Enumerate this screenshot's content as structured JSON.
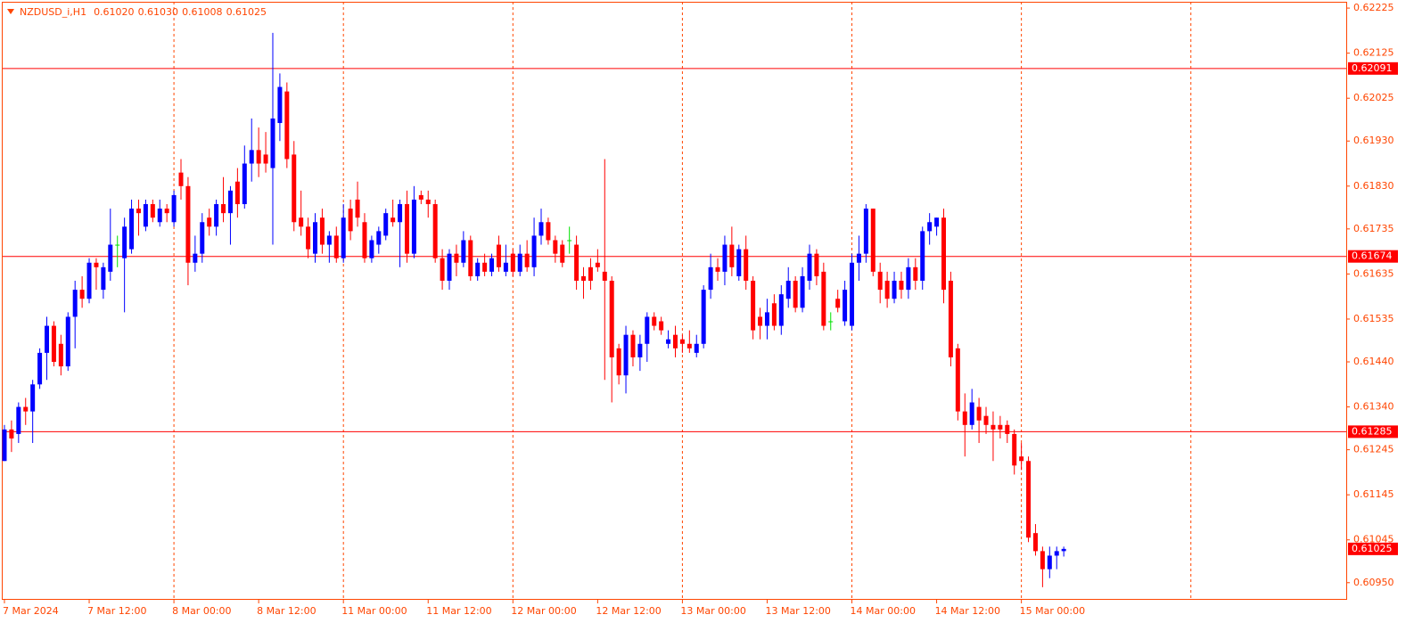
{
  "chart_data": {
    "type": "candlestick",
    "title": "NZDUSD_i,H1",
    "last_labels": [
      "0.61020",
      "0.61030",
      "0.61008",
      "0.61025"
    ],
    "bull_color": "#0000ff",
    "bear_color": "#ff0000",
    "doji_color": "#00e000",
    "grid_color": "#ff4500",
    "level_color": "#ff0000",
    "x": [
      0,
      1,
      2,
      3,
      4,
      5,
      6,
      7,
      8,
      9,
      10,
      11,
      12,
      13,
      14,
      15,
      16,
      17,
      18,
      19,
      20,
      21,
      22,
      23,
      24,
      25,
      26,
      27,
      28,
      29,
      30,
      31,
      32,
      33,
      34,
      35,
      36,
      37,
      38,
      39,
      40,
      41,
      42,
      43,
      44,
      45,
      46,
      47,
      48,
      49,
      50,
      51,
      52,
      53,
      54,
      55,
      56,
      57,
      58,
      59,
      60,
      61,
      62,
      63,
      64,
      65,
      66,
      67,
      68,
      69,
      70,
      71,
      72,
      73,
      74,
      75,
      76,
      77,
      78,
      79,
      80,
      81,
      82,
      83,
      84,
      85,
      86,
      87,
      88,
      89,
      90,
      91,
      92,
      93,
      94,
      95,
      96,
      97,
      98,
      99,
      100,
      101,
      102,
      103,
      104,
      105,
      106,
      107,
      108,
      109,
      110,
      111,
      112,
      113,
      114,
      115,
      116,
      117,
      118,
      119,
      120,
      121,
      122,
      123,
      124,
      125,
      126,
      127,
      128,
      129,
      130,
      131,
      132,
      133,
      134,
      135,
      136,
      137,
      138,
      139,
      140,
      141,
      142,
      143,
      144,
      145,
      146,
      147,
      148,
      149,
      150
    ],
    "open": [
      0.6122,
      0.6129,
      0.6128,
      0.6134,
      0.6133,
      0.6139,
      0.6146,
      0.6152,
      0.6148,
      0.6143,
      0.6154,
      0.616,
      0.6158,
      0.6166,
      0.616,
      0.6164,
      0.617,
      0.6167,
      0.6169,
      0.6178,
      0.6174,
      0.6179,
      0.6175,
      0.6178,
      0.6175,
      0.6186,
      0.6183,
      0.6166,
      0.6168,
      0.6176,
      0.6174,
      0.6179,
      0.6177,
      0.6184,
      0.6179,
      0.6188,
      0.6191,
      0.619,
      0.6187,
      0.6197,
      0.6204,
      0.619,
      0.6176,
      0.6174,
      0.6168,
      0.6176,
      0.617,
      0.6172,
      0.6167,
      0.6178,
      0.618,
      0.6175,
      0.6167,
      0.617,
      0.6172,
      0.6176,
      0.6175,
      0.6179,
      0.6168,
      0.6181,
      0.618,
      0.6179,
      0.6167,
      0.6162,
      0.6168,
      0.6166,
      0.6171,
      0.6163,
      0.6166,
      0.6164,
      0.617,
      0.6164,
      0.6168,
      0.6164,
      0.6168,
      0.6165,
      0.6172,
      0.6175,
      0.6171,
      0.617,
      0.6171,
      0.617,
      0.6163,
      0.6165,
      0.6166,
      0.6164,
      0.6162,
      0.6147,
      0.6141,
      0.615,
      0.6145,
      0.6148,
      0.6154,
      0.6153,
      0.6148,
      0.615,
      0.6149,
      0.6148,
      0.6146,
      0.6148,
      0.616,
      0.6165,
      0.6164,
      0.617,
      0.6163,
      0.6169,
      0.6162,
      0.6154,
      0.6152,
      0.6157,
      0.6152,
      0.6158,
      0.6162,
      0.6156,
      0.6162,
      0.6168,
      0.6164,
      0.6153,
      0.6158,
      0.6153,
      0.6152,
      0.6166,
      0.6168,
      0.6178,
      0.6164,
      0.6162,
      0.6158,
      0.6162,
      0.616,
      0.6165,
      0.6162,
      0.6173,
      0.6174,
      0.6176,
      0.6162,
      0.6147,
      0.6133,
      0.613,
      0.6134,
      0.6132,
      0.613,
      0.613,
      0.613,
      0.6128,
      0.6123,
      0.6122,
      0.6106,
      0.6102,
      0.6098,
      0.6101,
      0.6102
    ],
    "high": [
      0.613,
      0.6131,
      0.6135,
      0.6136,
      0.614,
      0.6147,
      0.6154,
      0.6153,
      0.615,
      0.6155,
      0.6162,
      0.6163,
      0.6167,
      0.6167,
      0.6166,
      0.6178,
      0.6172,
      0.6176,
      0.618,
      0.618,
      0.618,
      0.618,
      0.618,
      0.6179,
      0.6182,
      0.6189,
      0.6185,
      0.6172,
      0.6177,
      0.6178,
      0.618,
      0.6185,
      0.6183,
      0.6187,
      0.6192,
      0.6198,
      0.6196,
      0.6195,
      0.6217,
      0.6208,
      0.6206,
      0.6193,
      0.6182,
      0.6176,
      0.6177,
      0.6178,
      0.6173,
      0.6174,
      0.6179,
      0.618,
      0.6184,
      0.6177,
      0.6172,
      0.6174,
      0.6178,
      0.618,
      0.618,
      0.6182,
      0.6183,
      0.6182,
      0.6182,
      0.618,
      0.6169,
      0.6169,
      0.617,
      0.6173,
      0.6172,
      0.6167,
      0.6168,
      0.6168,
      0.6172,
      0.617,
      0.6169,
      0.617,
      0.6171,
      0.6176,
      0.6178,
      0.6176,
      0.6172,
      0.6171,
      0.6174,
      0.6172,
      0.6165,
      0.6167,
      0.6169,
      0.6189,
      0.6163,
      0.6148,
      0.6152,
      0.6151,
      0.615,
      0.6155,
      0.6155,
      0.6154,
      0.6151,
      0.6152,
      0.615,
      0.6151,
      0.615,
      0.6161,
      0.6168,
      0.6167,
      0.6172,
      0.6174,
      0.617,
      0.6172,
      0.6163,
      0.6156,
      0.6158,
      0.6159,
      0.6161,
      0.6165,
      0.6163,
      0.6165,
      0.617,
      0.6169,
      0.6166,
      0.6155,
      0.616,
      0.6162,
      0.6168,
      0.6172,
      0.6179,
      0.6178,
      0.6166,
      0.6164,
      0.6164,
      0.6164,
      0.6167,
      0.6167,
      0.6174,
      0.6177,
      0.6176,
      0.6178,
      0.6164,
      0.6148,
      0.6137,
      0.6138,
      0.6136,
      0.6134,
      0.6133,
      0.6132,
      0.6131,
      0.6129,
      0.6126,
      0.6123,
      0.6108,
      0.6103,
      0.6103,
      0.6103,
      0.6103
    ],
    "low": [
      0.6122,
      0.6124,
      0.6126,
      0.613,
      0.6126,
      0.6138,
      0.614,
      0.6143,
      0.6141,
      0.6142,
      0.6147,
      0.6156,
      0.6157,
      0.616,
      0.6158,
      0.6162,
      0.6165,
      0.6155,
      0.6168,
      0.6172,
      0.6173,
      0.6175,
      0.6174,
      0.6175,
      0.6174,
      0.618,
      0.6161,
      0.6164,
      0.6166,
      0.6172,
      0.6172,
      0.6175,
      0.617,
      0.6176,
      0.6178,
      0.6184,
      0.6185,
      0.6186,
      0.617,
      0.6193,
      0.6187,
      0.6173,
      0.6172,
      0.6167,
      0.6166,
      0.6168,
      0.6166,
      0.6166,
      0.6166,
      0.6171,
      0.6174,
      0.6166,
      0.6166,
      0.6168,
      0.6171,
      0.6174,
      0.6165,
      0.6166,
      0.6167,
      0.6179,
      0.6176,
      0.6166,
      0.616,
      0.616,
      0.6163,
      0.6165,
      0.6162,
      0.6162,
      0.6163,
      0.6163,
      0.6164,
      0.6163,
      0.6163,
      0.6163,
      0.6164,
      0.6163,
      0.617,
      0.617,
      0.6166,
      0.6165,
      0.6168,
      0.616,
      0.6158,
      0.616,
      0.6164,
      0.614,
      0.6135,
      0.6139,
      0.6137,
      0.6143,
      0.6142,
      0.6144,
      0.6151,
      0.615,
      0.6147,
      0.6145,
      0.6146,
      0.6146,
      0.6145,
      0.6147,
      0.6158,
      0.6162,
      0.6161,
      0.6163,
      0.6162,
      0.616,
      0.6149,
      0.6149,
      0.6149,
      0.6151,
      0.615,
      0.6156,
      0.6155,
      0.6155,
      0.616,
      0.6161,
      0.6151,
      0.6151,
      0.6155,
      0.6152,
      0.6151,
      0.6162,
      0.6166,
      0.6163,
      0.6157,
      0.6156,
      0.6157,
      0.6158,
      0.6158,
      0.616,
      0.616,
      0.617,
      0.6172,
      0.6157,
      0.6143,
      0.6131,
      0.6123,
      0.6129,
      0.6126,
      0.6128,
      0.6122,
      0.6127,
      0.6126,
      0.6119,
      0.612,
      0.6104,
      0.6101,
      0.6094,
      0.6096,
      0.6098,
      0.61008
    ],
    "close": [
      0.6129,
      0.6127,
      0.6134,
      0.6133,
      0.6139,
      0.6146,
      0.6152,
      0.6144,
      0.6143,
      0.6154,
      0.616,
      0.6158,
      0.6166,
      0.6165,
      0.6165,
      0.617,
      0.617,
      0.6174,
      0.6178,
      0.6177,
      0.6179,
      0.6176,
      0.6178,
      0.6177,
      0.6181,
      0.6183,
      0.6166,
      0.6168,
      0.6175,
      0.6174,
      0.6179,
      0.6177,
      0.6182,
      0.6179,
      0.6188,
      0.6191,
      0.6188,
      0.6188,
      0.6198,
      0.6205,
      0.6189,
      0.6175,
      0.6174,
      0.6169,
      0.6175,
      0.617,
      0.6172,
      0.6167,
      0.6176,
      0.6173,
      0.6176,
      0.6167,
      0.6171,
      0.6173,
      0.6177,
      0.6175,
      0.6179,
      0.6168,
      0.618,
      0.618,
      0.6179,
      0.6167,
      0.6162,
      0.6168,
      0.6166,
      0.6171,
      0.6163,
      0.6166,
      0.6164,
      0.6167,
      0.6165,
      0.6166,
      0.6164,
      0.6168,
      0.6165,
      0.6172,
      0.6175,
      0.6171,
      0.6168,
      0.6166,
      0.6171,
      0.6162,
      0.6162,
      0.6162,
      0.6165,
      0.6162,
      0.6145,
      0.6141,
      0.615,
      0.6145,
      0.6148,
      0.6154,
      0.6152,
      0.6151,
      0.6149,
      0.6147,
      0.6148,
      0.6147,
      0.6148,
      0.616,
      0.6165,
      0.6164,
      0.617,
      0.6165,
      0.6169,
      0.6162,
      0.6151,
      0.6152,
      0.6155,
      0.6152,
      0.6159,
      0.6162,
      0.6156,
      0.6163,
      0.6168,
      0.6163,
      0.6152,
      0.6153,
      0.6156,
      0.616,
      0.6166,
      0.6168,
      0.6178,
      0.6164,
      0.616,
      0.6158,
      0.6162,
      0.616,
      0.6165,
      0.6162,
      0.6173,
      0.6175,
      0.6176,
      0.616,
      0.6145,
      0.6133,
      0.613,
      0.6135,
      0.6131,
      0.613,
      0.6129,
      0.6129,
      0.6128,
      0.6121,
      0.6122,
      0.6105,
      0.6102,
      0.6098,
      0.6101,
      0.6102,
      0.61025
    ],
    "xlim": [
      -0.25,
      190
    ],
    "xticks": [
      {
        "value": 0,
        "label": "7 Mar 2024"
      },
      {
        "value": 12,
        "label": "7 Mar 12:00"
      },
      {
        "value": 24,
        "label": "8 Mar 00:00"
      },
      {
        "value": 36,
        "label": "8 Mar 12:00"
      },
      {
        "value": 48,
        "label": "11 Mar 00:00"
      },
      {
        "value": 60,
        "label": "11 Mar 12:00"
      },
      {
        "value": 72,
        "label": "12 Mar 00:00"
      },
      {
        "value": 84,
        "label": "12 Mar 12:00"
      },
      {
        "value": 96,
        "label": "13 Mar 00:00"
      },
      {
        "value": 108,
        "label": "13 Mar 12:00"
      },
      {
        "value": 120,
        "label": "14 Mar 00:00"
      },
      {
        "value": 132,
        "label": "14 Mar 12:00"
      },
      {
        "value": 144,
        "label": "15 Mar 00:00"
      }
    ],
    "xgrid": [
      24,
      48,
      72,
      96,
      120,
      144,
      168
    ],
    "ylim": [
      0.60912,
      0.62239
    ],
    "yticks": [
      0.62225,
      0.62125,
      0.62025,
      {
        "value": 0.6193,
        "label": "0.61930"
      },
      {
        "value": 0.6183,
        "label": "0.61830"
      },
      0.61735,
      0.61635,
      0.61535,
      {
        "value": 0.6144,
        "label": "0.61440"
      },
      {
        "value": 0.6134,
        "label": "0.61340"
      },
      0.61245,
      0.61145,
      0.61045,
      {
        "value": 0.6095,
        "label": "0.60950"
      }
    ],
    "levels": [
      0.62091,
      0.61674,
      0.61285
    ],
    "current_price": 0.61025
  }
}
